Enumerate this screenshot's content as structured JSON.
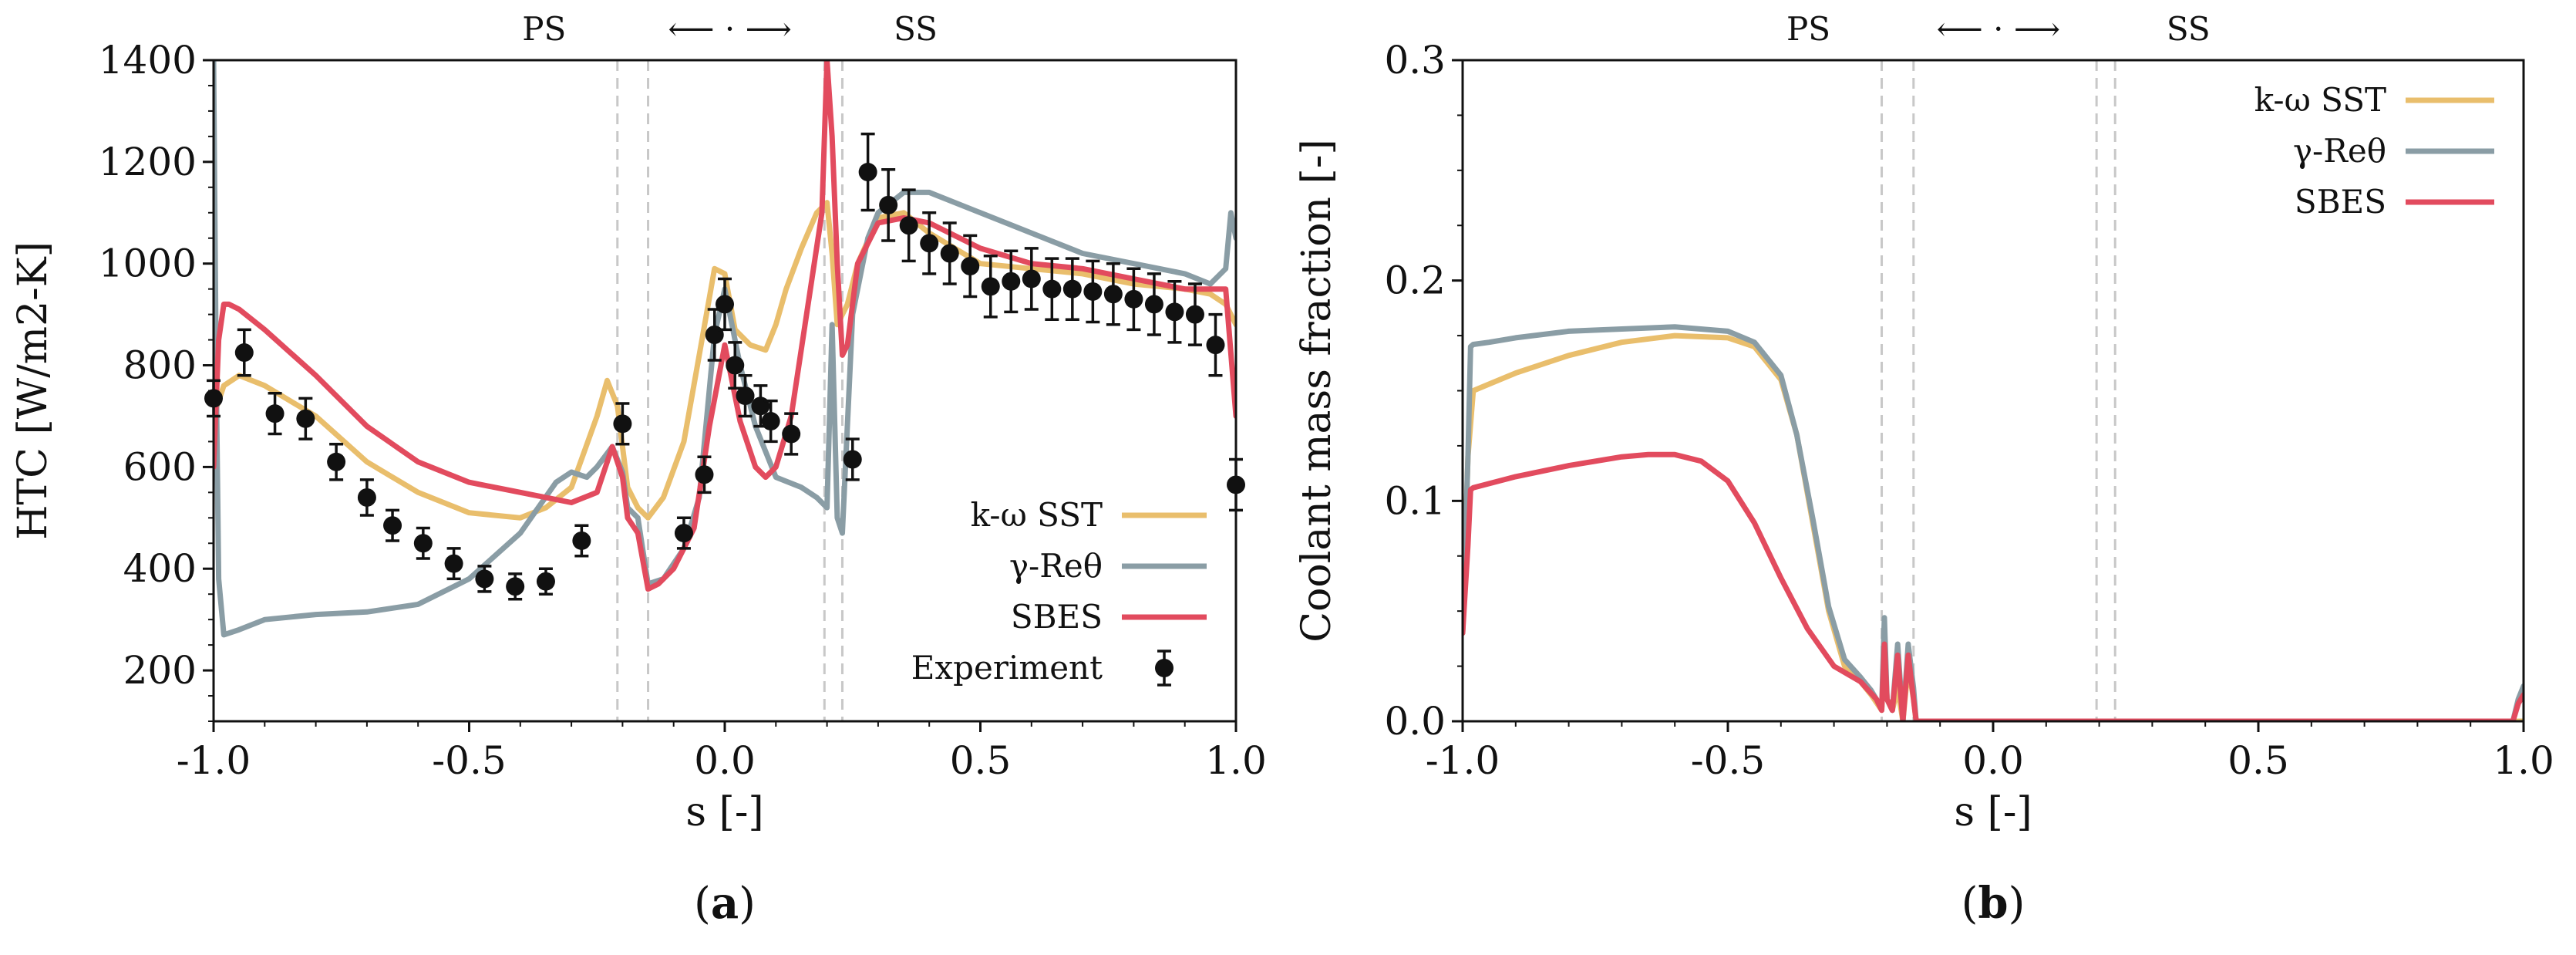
{
  "colors": {
    "sst": "#E9BE6C",
    "gamma": "#8A9DA5",
    "sbes": "#E24B5E",
    "experiment": "#111111",
    "marker_line": "#C8C8C8"
  },
  "chart_data": [
    {
      "type": "line",
      "panel_label": "a",
      "xlabel": "s [-]",
      "ylabel": "HTC [W/m2-K]",
      "xlim": [
        -1.0,
        1.0
      ],
      "ylim": [
        100,
        1400
      ],
      "xticks": [
        -1.0,
        -0.5,
        0.0,
        0.5,
        1.0
      ],
      "xtick_labels": [
        "-1.0",
        "-0.5",
        "0.0",
        "0.5",
        "1.0"
      ],
      "yticks": [
        200,
        400,
        600,
        800,
        1000,
        1200,
        1400
      ],
      "ytick_labels": [
        "200",
        "400",
        "600",
        "800",
        "1000",
        "1200",
        "1400"
      ],
      "annotation": {
        "left": "PS",
        "right": "SS",
        "arrow": "⟵ · ⟶"
      },
      "marker_lines_x": [
        -0.21,
        -0.15,
        0.195,
        0.23
      ],
      "legend_position": "bottom-right",
      "series": [
        {
          "name": "k-ω SST",
          "color_key": "sst",
          "x": [
            -1.0,
            -0.98,
            -0.95,
            -0.9,
            -0.8,
            -0.7,
            -0.6,
            -0.5,
            -0.4,
            -0.35,
            -0.3,
            -0.25,
            -0.23,
            -0.21,
            -0.19,
            -0.17,
            -0.15,
            -0.12,
            -0.08,
            -0.05,
            -0.02,
            0.0,
            0.02,
            0.05,
            0.08,
            0.1,
            0.12,
            0.15,
            0.18,
            0.2,
            0.21,
            0.22,
            0.24,
            0.26,
            0.3,
            0.35,
            0.4,
            0.5,
            0.6,
            0.7,
            0.8,
            0.9,
            0.95,
            0.98,
            1.0
          ],
          "y": [
            700,
            760,
            780,
            760,
            700,
            610,
            550,
            510,
            500,
            520,
            560,
            700,
            770,
            720,
            560,
            520,
            500,
            540,
            650,
            820,
            990,
            980,
            870,
            840,
            830,
            880,
            950,
            1030,
            1100,
            1120,
            1020,
            880,
            920,
            1000,
            1090,
            1100,
            1060,
            1000,
            990,
            980,
            960,
            950,
            940,
            920,
            880
          ]
        },
        {
          "name": "γ-Reθ",
          "color_key": "gamma",
          "x": [
            -1.0,
            -0.995,
            -0.99,
            -0.98,
            -0.95,
            -0.9,
            -0.8,
            -0.7,
            -0.6,
            -0.5,
            -0.4,
            -0.33,
            -0.3,
            -0.27,
            -0.25,
            -0.22,
            -0.2,
            -0.19,
            -0.17,
            -0.15,
            -0.12,
            -0.08,
            -0.05,
            -0.02,
            0.0,
            0.03,
            0.06,
            0.1,
            0.15,
            0.18,
            0.2,
            0.21,
            0.22,
            0.23,
            0.25,
            0.28,
            0.3,
            0.35,
            0.4,
            0.5,
            0.6,
            0.7,
            0.8,
            0.9,
            0.95,
            0.98,
            0.99,
            1.0
          ],
          "y": [
            1400,
            800,
            380,
            270,
            280,
            300,
            310,
            315,
            330,
            380,
            470,
            570,
            590,
            580,
            600,
            640,
            590,
            520,
            500,
            370,
            380,
            440,
            540,
            860,
            950,
            800,
            680,
            580,
            560,
            540,
            520,
            880,
            500,
            470,
            900,
            1050,
            1100,
            1140,
            1140,
            1100,
            1060,
            1020,
            1000,
            980,
            960,
            990,
            1100,
            1050
          ]
        },
        {
          "name": "SBES",
          "color_key": "sbes",
          "x": [
            -1.0,
            -0.99,
            -0.98,
            -0.97,
            -0.95,
            -0.9,
            -0.8,
            -0.7,
            -0.6,
            -0.5,
            -0.4,
            -0.3,
            -0.25,
            -0.22,
            -0.2,
            -0.19,
            -0.17,
            -0.15,
            -0.13,
            -0.1,
            -0.06,
            -0.03,
            0.0,
            0.03,
            0.06,
            0.08,
            0.1,
            0.13,
            0.16,
            0.19,
            0.2,
            0.21,
            0.22,
            0.23,
            0.24,
            0.26,
            0.3,
            0.35,
            0.4,
            0.5,
            0.6,
            0.7,
            0.8,
            0.9,
            0.95,
            0.98,
            1.0
          ],
          "y": [
            600,
            850,
            920,
            920,
            910,
            870,
            780,
            680,
            610,
            570,
            550,
            530,
            550,
            640,
            580,
            500,
            470,
            360,
            370,
            400,
            480,
            680,
            840,
            690,
            600,
            580,
            600,
            700,
            900,
            1100,
            1400,
            1250,
            1000,
            820,
            840,
            1000,
            1080,
            1090,
            1080,
            1030,
            1000,
            990,
            970,
            950,
            950,
            950,
            700
          ]
        }
      ],
      "experiment": {
        "name": "Experiment",
        "color_key": "experiment",
        "x": [
          -1.0,
          -0.94,
          -0.88,
          -0.82,
          -0.76,
          -0.7,
          -0.65,
          -0.59,
          -0.53,
          -0.47,
          -0.41,
          -0.35,
          -0.28,
          -0.2,
          -0.08,
          -0.04,
          -0.02,
          0.0,
          0.02,
          0.04,
          0.07,
          0.09,
          0.13,
          0.25,
          0.28,
          0.32,
          0.36,
          0.4,
          0.44,
          0.48,
          0.52,
          0.56,
          0.6,
          0.64,
          0.68,
          0.72,
          0.76,
          0.8,
          0.84,
          0.88,
          0.92,
          0.96,
          1.0
        ],
        "y": [
          735,
          825,
          705,
          695,
          610,
          540,
          485,
          450,
          410,
          380,
          365,
          375,
          455,
          685,
          470,
          585,
          860,
          920,
          800,
          740,
          720,
          690,
          665,
          615,
          1180,
          1115,
          1075,
          1040,
          1020,
          995,
          955,
          965,
          970,
          950,
          950,
          945,
          940,
          930,
          920,
          905,
          900,
          840,
          565
        ],
        "err": [
          35,
          45,
          40,
          40,
          35,
          35,
          30,
          30,
          30,
          25,
          25,
          25,
          30,
          40,
          30,
          35,
          50,
          50,
          45,
          40,
          40,
          40,
          40,
          40,
          75,
          70,
          70,
          60,
          60,
          60,
          60,
          60,
          60,
          60,
          60,
          60,
          60,
          60,
          60,
          60,
          60,
          60,
          50
        ]
      }
    },
    {
      "type": "line",
      "panel_label": "b",
      "xlabel": "s [-]",
      "ylabel": "Coolant mass fraction [-]",
      "xlim": [
        -1.0,
        1.0
      ],
      "ylim": [
        0.0,
        0.3
      ],
      "xticks": [
        -1.0,
        -0.5,
        0.0,
        0.5,
        1.0
      ],
      "xtick_labels": [
        "-1.0",
        "-0.5",
        "0.0",
        "0.5",
        "1.0"
      ],
      "yticks": [
        0.0,
        0.1,
        0.2,
        0.3
      ],
      "ytick_labels": [
        "0.0",
        "0.1",
        "0.2",
        "0.3"
      ],
      "annotation": {
        "left": "PS",
        "right": "SS",
        "arrow": "⟵ · ⟶"
      },
      "marker_lines_x": [
        -0.21,
        -0.15,
        0.195,
        0.23
      ],
      "legend_position": "top-right",
      "series": [
        {
          "name": "k-ω SST",
          "color_key": "sst",
          "x": [
            -1.0,
            -0.99,
            -0.98,
            -0.95,
            -0.9,
            -0.8,
            -0.7,
            -0.6,
            -0.5,
            -0.45,
            -0.4,
            -0.37,
            -0.34,
            -0.31,
            -0.28,
            -0.25,
            -0.23,
            -0.21,
            -0.205,
            -0.2,
            -0.19,
            -0.18,
            -0.17,
            -0.16,
            -0.15,
            -0.145,
            1.0
          ],
          "y": [
            0.04,
            0.12,
            0.15,
            0.153,
            0.158,
            0.166,
            0.172,
            0.175,
            0.174,
            0.17,
            0.155,
            0.13,
            0.09,
            0.05,
            0.025,
            0.018,
            0.012,
            0.005,
            0.03,
            0.01,
            0.005,
            0.015,
            0.0,
            0.025,
            0.01,
            0.0,
            0.0
          ]
        },
        {
          "name": "γ-Reθ",
          "color_key": "gamma",
          "x": [
            -1.0,
            -0.99,
            -0.985,
            -0.98,
            -0.95,
            -0.9,
            -0.8,
            -0.7,
            -0.6,
            -0.5,
            -0.45,
            -0.4,
            -0.37,
            -0.34,
            -0.31,
            -0.28,
            -0.25,
            -0.23,
            -0.21,
            -0.205,
            -0.2,
            -0.19,
            -0.18,
            -0.17,
            -0.16,
            -0.15,
            -0.145,
            0.98,
            0.99,
            1.0
          ],
          "y": [
            0.04,
            0.12,
            0.17,
            0.171,
            0.172,
            0.174,
            0.177,
            0.178,
            0.179,
            0.177,
            0.172,
            0.157,
            0.13,
            0.092,
            0.052,
            0.028,
            0.02,
            0.014,
            0.006,
            0.047,
            0.01,
            0.005,
            0.035,
            0.0,
            0.035,
            0.015,
            0.0,
            0.0,
            0.01,
            0.016
          ]
        },
        {
          "name": "SBES",
          "color_key": "sbes",
          "x": [
            -1.0,
            -0.99,
            -0.985,
            -0.98,
            -0.9,
            -0.8,
            -0.7,
            -0.65,
            -0.6,
            -0.55,
            -0.5,
            -0.45,
            -0.4,
            -0.35,
            -0.3,
            -0.25,
            -0.22,
            -0.21,
            -0.205,
            -0.2,
            -0.19,
            -0.18,
            -0.17,
            -0.16,
            -0.15,
            -0.145,
            0.98,
            0.99,
            1.0
          ],
          "y": [
            0.04,
            0.08,
            0.105,
            0.106,
            0.111,
            0.116,
            0.12,
            0.121,
            0.121,
            0.118,
            0.109,
            0.09,
            0.065,
            0.042,
            0.025,
            0.018,
            0.01,
            0.005,
            0.035,
            0.01,
            0.005,
            0.03,
            0.0,
            0.03,
            0.01,
            0.0,
            0.0,
            0.008,
            0.012
          ]
        }
      ]
    }
  ]
}
